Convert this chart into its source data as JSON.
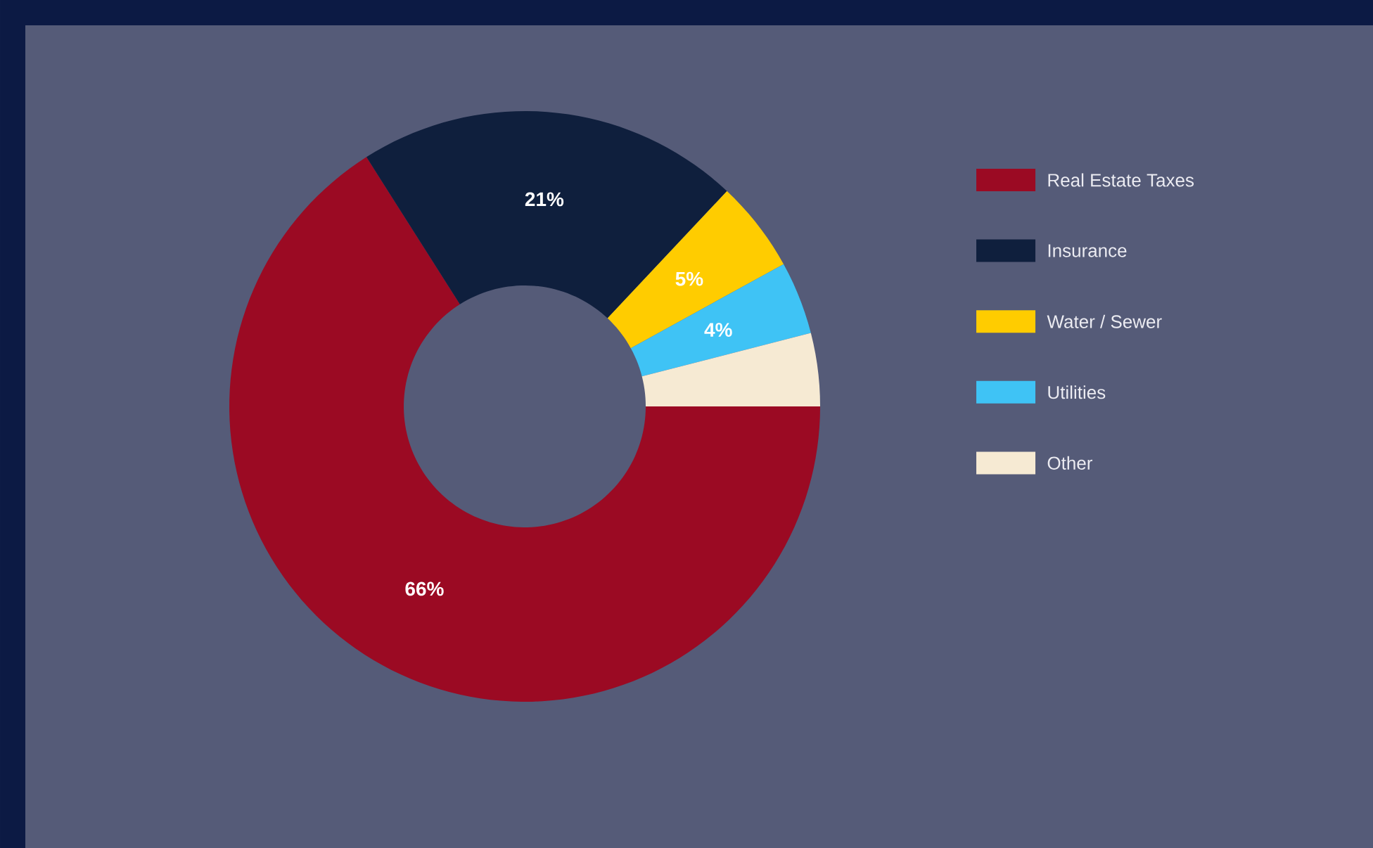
{
  "chart_data": {
    "type": "donut",
    "categories": [
      "Real Estate Taxes",
      "Insurance",
      "Water / Sewer",
      "Utilities",
      "Other"
    ],
    "values": [
      66,
      21,
      5,
      4,
      4
    ],
    "colors": [
      "#9b0a23",
      "#0f1f3d",
      "#ffcc00",
      "#3fc3f5",
      "#f6ead3"
    ],
    "value_labels": [
      "66%",
      "21%",
      "5%",
      "4%",
      null
    ],
    "legend": "right"
  }
}
